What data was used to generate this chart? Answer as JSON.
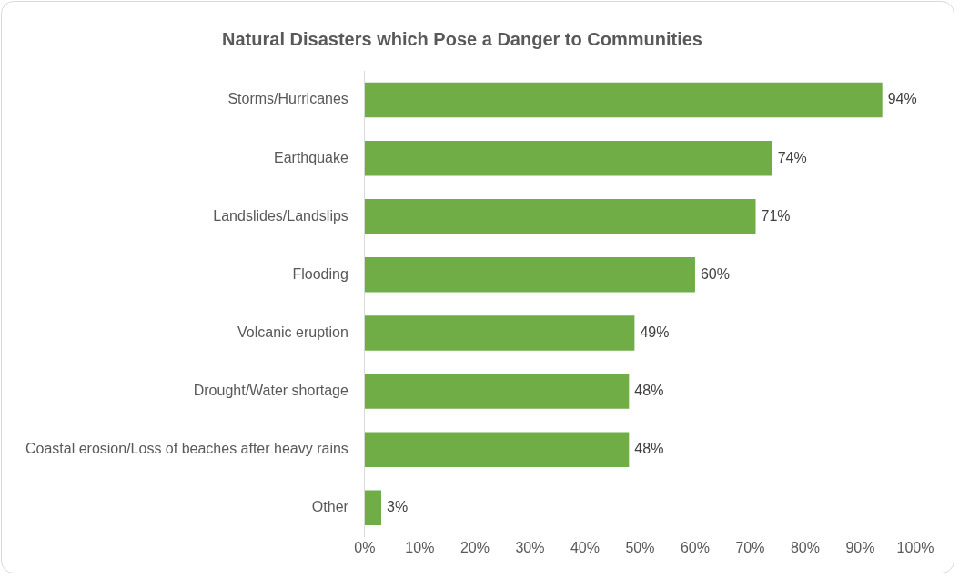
{
  "chart_data": {
    "type": "bar",
    "orientation": "horizontal",
    "title": "Natural Disasters which Pose a Danger to Communities",
    "categories": [
      "Storms/Hurricanes",
      "Earthquake",
      "Landslides/Landslips",
      "Flooding",
      "Volcanic eruption",
      "Drought/Water shortage",
      "Coastal erosion/Loss of beaches after heavy rains",
      "Other"
    ],
    "values": [
      94,
      74,
      71,
      60,
      49,
      48,
      48,
      3
    ],
    "value_labels": [
      "94%",
      "74%",
      "71%",
      "60%",
      "49%",
      "48%",
      "48%",
      "3%"
    ],
    "color": "#70ad47",
    "xlim": [
      0,
      100
    ],
    "xticks": [
      {
        "value": 0,
        "label": "0%"
      },
      {
        "value": 10,
        "label": "10%"
      },
      {
        "value": 20,
        "label": "20%"
      },
      {
        "value": 30,
        "label": "30%"
      },
      {
        "value": 40,
        "label": "40%"
      },
      {
        "value": 50,
        "label": "50%"
      },
      {
        "value": 60,
        "label": "60%"
      },
      {
        "value": 70,
        "label": "70%"
      },
      {
        "value": 80,
        "label": "80%"
      },
      {
        "value": 90,
        "label": "90%"
      },
      {
        "value": 100,
        "label": "100%"
      }
    ],
    "grid": false,
    "legend": false
  }
}
